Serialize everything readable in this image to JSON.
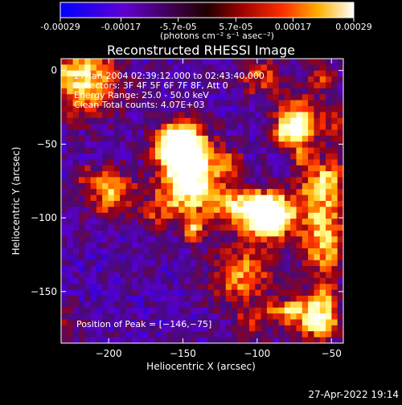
{
  "colorbar": {
    "tick_labels": [
      "-0.00029",
      "-0.00017",
      "-5.7e-05",
      "5.7e-05",
      "0.00017",
      "0.00029"
    ],
    "tick_values": [
      -0.00029,
      -0.00017,
      -5.7e-05,
      5.7e-05,
      0.00017,
      0.00029
    ],
    "range": [
      -0.00029,
      0.00029
    ],
    "units_label": "(photons cm⁻² s⁻¹ asec⁻²)"
  },
  "chart_data": {
    "type": "heatmap",
    "title": "Reconstructed RHESSI Image",
    "xlabel": "Heliocentric X (arcsec)",
    "ylabel": "Heliocentric Y (arcsec)",
    "xlim": [
      -232,
      -42
    ],
    "ylim": [
      -185,
      8
    ],
    "x_ticks": [
      -200,
      -150,
      -100,
      -50
    ],
    "x_tick_labels": [
      "−200",
      "−150",
      "−100",
      "−50"
    ],
    "y_ticks": [
      0,
      -50,
      -100,
      -150
    ],
    "y_tick_labels": [
      "0",
      "−50",
      "−100",
      "−150"
    ],
    "peak": [
      -146,
      -75
    ],
    "colormap_colors": [
      "#0000ff",
      "#7a00c8",
      "#5a0a8a",
      "#a00000",
      "#ff3000",
      "#ffa000",
      "#ffff80",
      "#ffffff"
    ]
  },
  "overlay": {
    "line1": "27-Jan-2004 02:39:12.000 to 02:43:40.000",
    "line2": "Detectors: 3F 4F 5F 6F 7F 8F, Att 0",
    "line3": "Energy Range: 25.0 - 50.0 keV",
    "line4": "Clean     Total counts: 4.07E+03",
    "peak_label": "Position of Peak = [−146,−75]"
  },
  "footer": {
    "timestamp": "27-Apr-2022 19:14"
  }
}
